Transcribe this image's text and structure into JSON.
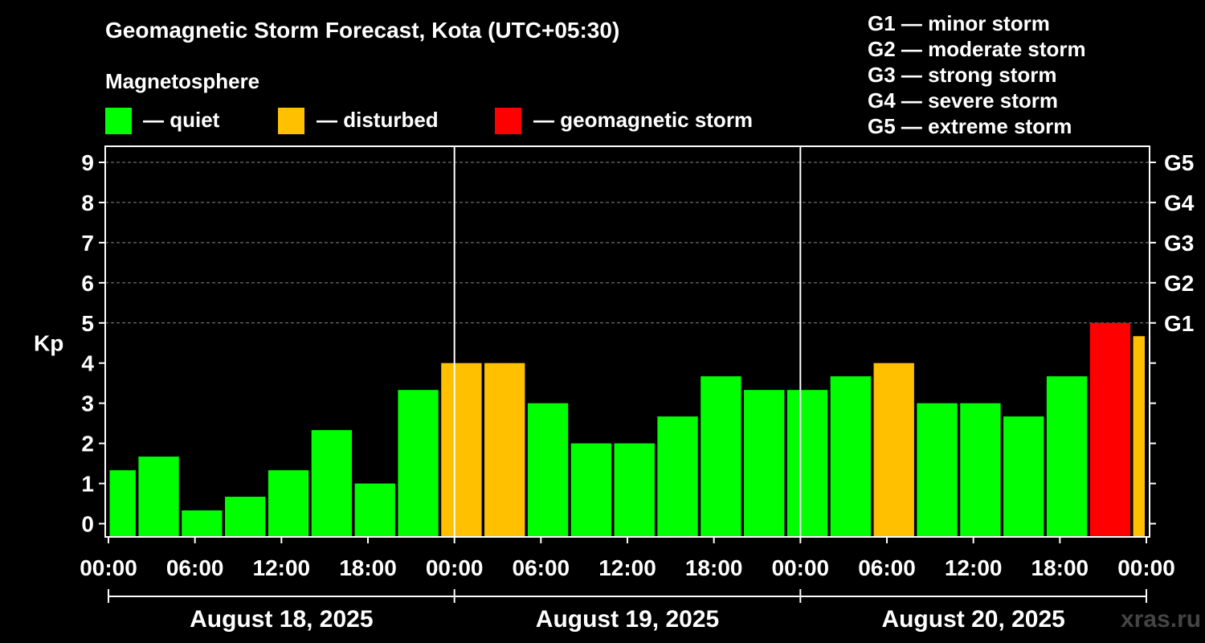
{
  "header": {
    "title": "Geomagnetic Storm Forecast, Kota (UTC+05:30)",
    "subtitle": "Magnetosphere"
  },
  "legend": [
    {
      "label": "— quiet",
      "color": "#00ff00"
    },
    {
      "label": "— disturbed",
      "color": "#ffc000"
    },
    {
      "label": "— geomagnetic storm",
      "color": "#ff0000"
    }
  ],
  "storm_scale": [
    "G1 — minor storm",
    "G2 — moderate storm",
    "G3 — strong storm",
    "G4 — severe storm",
    "G5 — extreme storm"
  ],
  "watermark": "xras.ru",
  "chart_data": {
    "type": "bar",
    "title": "Geomagnetic Storm Forecast, Kota (UTC+05:30)",
    "ylabel": "Kp",
    "ylim": [
      -0.33,
      9.4
    ],
    "yticks": [
      "0",
      "1",
      "2",
      "3",
      "4",
      "5",
      "6",
      "7",
      "8",
      "9"
    ],
    "right_labels": [
      {
        "value": 5,
        "label": "G1"
      },
      {
        "value": 6,
        "label": "G2"
      },
      {
        "value": 7,
        "label": "G3"
      },
      {
        "value": 8,
        "label": "G4"
      },
      {
        "value": 9,
        "label": "G5"
      }
    ],
    "xlim_hours": [
      0,
      72
    ],
    "xticks": [
      {
        "hour": 0,
        "label": "00:00"
      },
      {
        "hour": 6,
        "label": "06:00"
      },
      {
        "hour": 12,
        "label": "12:00"
      },
      {
        "hour": 18,
        "label": "18:00"
      },
      {
        "hour": 24,
        "label": "00:00"
      },
      {
        "hour": 30,
        "label": "06:00"
      },
      {
        "hour": 36,
        "label": "12:00"
      },
      {
        "hour": 42,
        "label": "18:00"
      },
      {
        "hour": 48,
        "label": "00:00"
      },
      {
        "hour": 54,
        "label": "06:00"
      },
      {
        "hour": 60,
        "label": "12:00"
      },
      {
        "hour": 66,
        "label": "18:00"
      },
      {
        "hour": 72,
        "label": "00:00"
      }
    ],
    "days": [
      {
        "label": "August 18, 2025",
        "start": 0,
        "end": 24
      },
      {
        "label": "August 19, 2025",
        "start": 24,
        "end": 48
      },
      {
        "label": "August 20, 2025",
        "start": 48,
        "end": 72
      }
    ],
    "bars": [
      {
        "start": 0,
        "end": 2,
        "value": 1.33,
        "level": "quiet"
      },
      {
        "start": 2,
        "end": 5,
        "value": 1.67,
        "level": "quiet"
      },
      {
        "start": 5,
        "end": 8,
        "value": 0.33,
        "level": "quiet"
      },
      {
        "start": 8,
        "end": 11,
        "value": 0.67,
        "level": "quiet"
      },
      {
        "start": 11,
        "end": 14,
        "value": 1.33,
        "level": "quiet"
      },
      {
        "start": 14,
        "end": 17,
        "value": 2.33,
        "level": "quiet"
      },
      {
        "start": 17,
        "end": 20,
        "value": 1.0,
        "level": "quiet"
      },
      {
        "start": 20,
        "end": 23,
        "value": 3.33,
        "level": "quiet"
      },
      {
        "start": 23,
        "end": 26,
        "value": 4.0,
        "level": "disturbed"
      },
      {
        "start": 26,
        "end": 29,
        "value": 4.0,
        "level": "disturbed"
      },
      {
        "start": 29,
        "end": 32,
        "value": 3.0,
        "level": "quiet"
      },
      {
        "start": 32,
        "end": 35,
        "value": 2.0,
        "level": "quiet"
      },
      {
        "start": 35,
        "end": 38,
        "value": 2.0,
        "level": "quiet"
      },
      {
        "start": 38,
        "end": 41,
        "value": 2.67,
        "level": "quiet"
      },
      {
        "start": 41,
        "end": 44,
        "value": 3.67,
        "level": "quiet"
      },
      {
        "start": 44,
        "end": 47,
        "value": 3.33,
        "level": "quiet"
      },
      {
        "start": 47,
        "end": 50,
        "value": 3.33,
        "level": "quiet"
      },
      {
        "start": 50,
        "end": 53,
        "value": 3.67,
        "level": "quiet"
      },
      {
        "start": 53,
        "end": 56,
        "value": 4.0,
        "level": "disturbed"
      },
      {
        "start": 56,
        "end": 59,
        "value": 3.0,
        "level": "quiet"
      },
      {
        "start": 59,
        "end": 62,
        "value": 3.0,
        "level": "quiet"
      },
      {
        "start": 62,
        "end": 65,
        "value": 2.67,
        "level": "quiet"
      },
      {
        "start": 65,
        "end": 68,
        "value": 3.67,
        "level": "quiet"
      },
      {
        "start": 68,
        "end": 71,
        "value": 5.0,
        "level": "storm"
      },
      {
        "start": 71,
        "end": 72,
        "value": 4.67,
        "level": "disturbed"
      }
    ],
    "colors": {
      "quiet": "#00ff00",
      "disturbed": "#ffc000",
      "storm": "#ff0000",
      "grid": "#888888",
      "axis": "#ffffff"
    }
  }
}
